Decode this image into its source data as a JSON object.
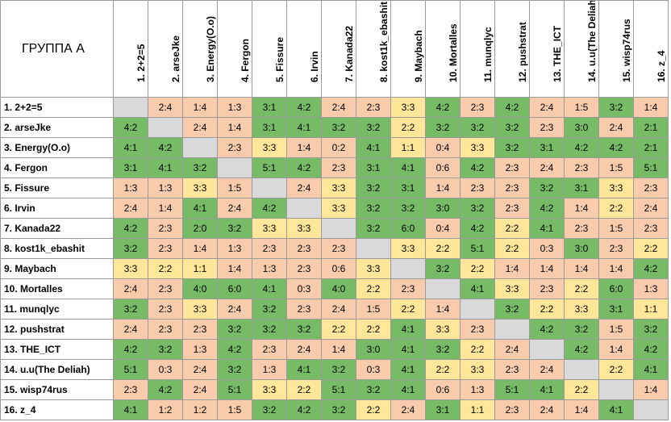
{
  "group_title": "ГРУППА А",
  "column_headers": [
    "1. 2+2=5",
    "2. arseJke",
    "3. Energy(O.o)",
    "4. Fergon",
    "5. Fissure",
    "6. Irvin",
    "7.  Kanada22",
    "8. kost1k_ebashit",
    "9. Maybach",
    "10. Mortalles",
    "11. munqlyc",
    "12. pushstrat",
    "13. THE_ICT",
    "14. u.u(The Deliah)",
    "15. wisp74rus",
    "16. z_4"
  ],
  "row_headers": [
    "1. 2+2=5",
    "2. arseJke",
    "3. Energy(O.o)",
    "4. Fergon",
    "5. Fissure",
    "6. Irvin",
    "7.  Kanada22",
    "8. kost1k_ebashit",
    "9. Maybach",
    "10. Mortalles",
    "11. munqlyc",
    "12. pushstrat",
    "13. THE_ICT",
    "14. u.u(The Deliah)",
    "15. wisp74rus",
    "16. z_4"
  ],
  "colors": {
    "win": "#77bb66",
    "draw": "#ffe699",
    "loss": "#f8cbad",
    "self": "#d9d9d9"
  },
  "results": [
    [
      "",
      "2:4",
      "1:4",
      "1:3",
      "3:1",
      "4:2",
      "2:4",
      "2:3",
      "3:3",
      "4:2",
      "2:3",
      "4:2",
      "2:4",
      "1:5",
      "3:2",
      "1:4"
    ],
    [
      "4:2",
      "",
      "2:4",
      "1:4",
      "3:1",
      "4:1",
      "3:2",
      "3:2",
      "2:2",
      "3:2",
      "3:2",
      "3:2",
      "2:3",
      "3:0",
      "2:4",
      "2:1"
    ],
    [
      "4:1",
      "4:2",
      "",
      "2:3",
      "3:3",
      "1:4",
      "0:2",
      "4:1",
      "1:1",
      "0:4",
      "3:3",
      "3:2",
      "3:1",
      "4:2",
      "4:2",
      "2:1"
    ],
    [
      "3:1",
      "4:1",
      "3:2",
      "",
      "5:1",
      "4:2",
      "2:3",
      "3:1",
      "4:1",
      "0:6",
      "4:2",
      "2:3",
      "2:4",
      "2:3",
      "1:5",
      "5:1"
    ],
    [
      "1:3",
      "1:3",
      "3:3",
      "1:5",
      "",
      "2:4",
      "3:3",
      "3:2",
      "3:1",
      "1:4",
      "2:3",
      "2:3",
      "3:2",
      "3:1",
      "3:3",
      "2:3"
    ],
    [
      "2:4",
      "1:4",
      "4:1",
      "2:4",
      "4:2",
      "",
      "3:3",
      "3:2",
      "3:2",
      "3:0",
      "3:2",
      "2:3",
      "4:2",
      "1:4",
      "2:2",
      "2:4"
    ],
    [
      "4:2",
      "2:3",
      "2:0",
      "3:2",
      "3:3",
      "3:3",
      "",
      "3:2",
      "6:0",
      "0:4",
      "4:2",
      "2:2",
      "4:1",
      "2:3",
      "1:5",
      "2:3"
    ],
    [
      "3:2",
      "2:3",
      "1:4",
      "1:3",
      "2:3",
      "2:3",
      "2:3",
      "",
      "3:3",
      "2:2",
      "5:1",
      "2:2",
      "0:3",
      "3:0",
      "2:3",
      "2:2"
    ],
    [
      "3:3",
      "2:2",
      "1:1",
      "1:4",
      "1:3",
      "2:3",
      "0:6",
      "3:3",
      "",
      "3:2",
      "2:2",
      "1:4",
      "1:4",
      "1:4",
      "1:4",
      "4:2"
    ],
    [
      "2:4",
      "2:3",
      "4:0",
      "6:0",
      "4:1",
      "0:3",
      "4:0",
      "2:2",
      "2:3",
      "",
      "4:1",
      "3:3",
      "2:3",
      "2:2",
      "6:0",
      "1:3"
    ],
    [
      "3:2",
      "2:3",
      "3:3",
      "2:4",
      "3:2",
      "2:3",
      "2:4",
      "1:5",
      "2:2",
      "1:4",
      "",
      "3:2",
      "2:2",
      "3:3",
      "3:1",
      "1:1"
    ],
    [
      "2:4",
      "2:3",
      "2:3",
      "3:2",
      "3:2",
      "3:2",
      "2:2",
      "2:2",
      "4:1",
      "3:3",
      "2:3",
      "",
      "4:2",
      "3:2",
      "1:5",
      "3:2"
    ],
    [
      "4:2",
      "3:2",
      "1:3",
      "4:2",
      "2:3",
      "2:4",
      "1:4",
      "3:0",
      "4:1",
      "3:2",
      "2:2",
      "2:4",
      "",
      "4:2",
      "1:4",
      "4:2"
    ],
    [
      "5:1",
      "0:3",
      "2:4",
      "3:2",
      "1:3",
      "4:1",
      "3:2",
      "0:3",
      "4:1",
      "2:2",
      "3:3",
      "2:3",
      "2:4",
      "",
      "2:2",
      "4:1"
    ],
    [
      "2:3",
      "4:2",
      "2:4",
      "5:1",
      "3:3",
      "2:2",
      "5:1",
      "3:2",
      "4:1",
      "0:6",
      "1:3",
      "5:1",
      "4:1",
      "2:2",
      "",
      "1:4"
    ],
    [
      "4:1",
      "1:2",
      "1:2",
      "1:5",
      "3:2",
      "4:2",
      "3:2",
      "2:2",
      "2:4",
      "3:1",
      "1:1",
      "2:3",
      "2:4",
      "1:4",
      "4:1",
      ""
    ]
  ]
}
